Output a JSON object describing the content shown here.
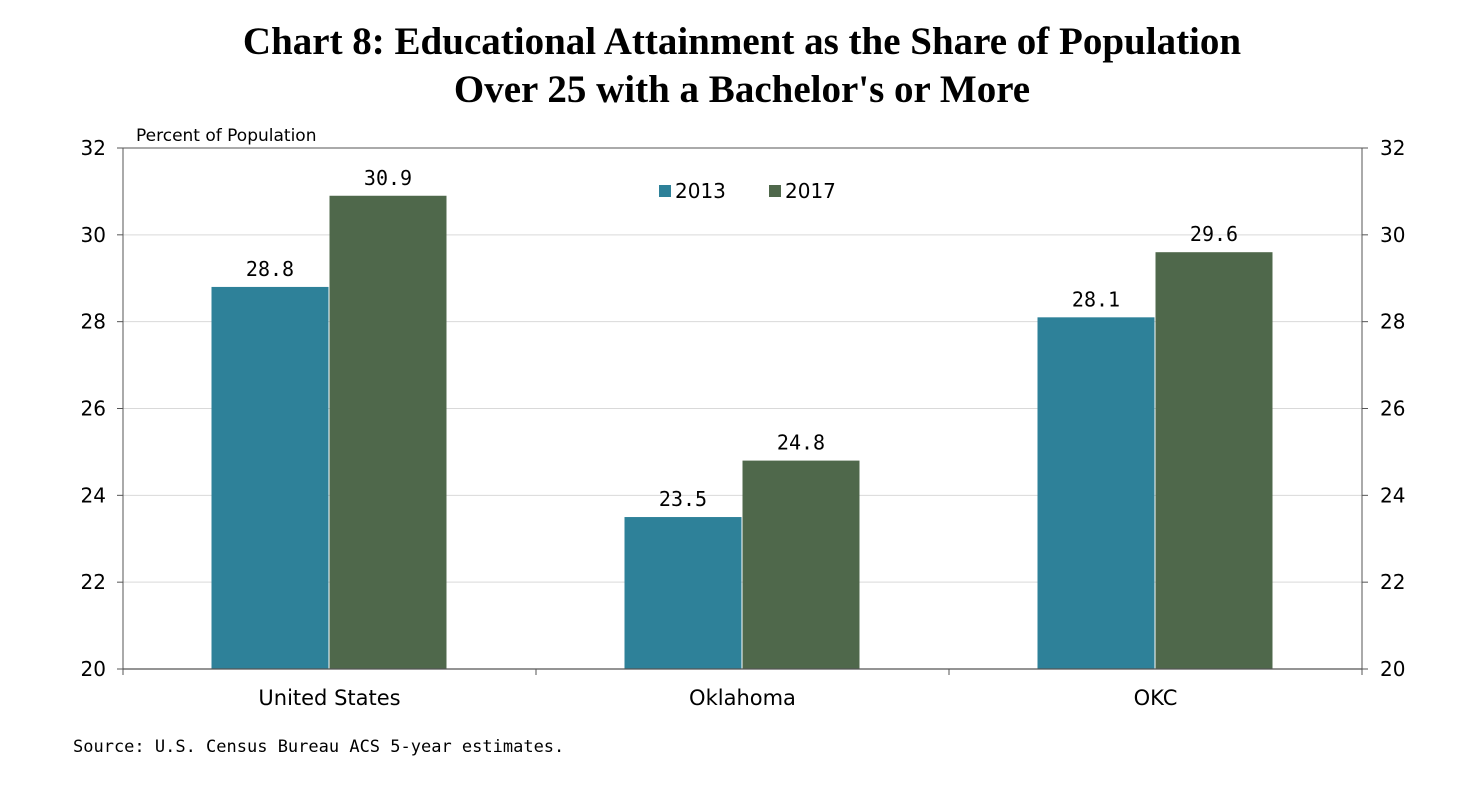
{
  "chart_data": {
    "type": "bar",
    "title_line1": "Chart 8: Educational Attainment as the Share of Population",
    "title_line2": "Over 25 with a Bachelor's or More",
    "ylabel": "Percent of Population",
    "ylim": [
      20,
      32
    ],
    "yticks": [
      20,
      22,
      24,
      26,
      28,
      30,
      32
    ],
    "categories": [
      "United States",
      "Oklahoma",
      "OKC"
    ],
    "series": [
      {
        "name": "2013",
        "color": "#2e8199",
        "values": [
          28.8,
          23.5,
          28.1
        ]
      },
      {
        "name": "2017",
        "color": "#4f684b",
        "values": [
          30.9,
          24.8,
          29.6
        ]
      }
    ],
    "value_labels": [
      [
        "28.8",
        "23.5",
        "28.1"
      ],
      [
        "30.9",
        "24.8",
        "29.6"
      ]
    ],
    "legend_position": "top-center",
    "grid": true,
    "source": "Source: U.S. Census Bureau ACS 5-year estimates."
  }
}
